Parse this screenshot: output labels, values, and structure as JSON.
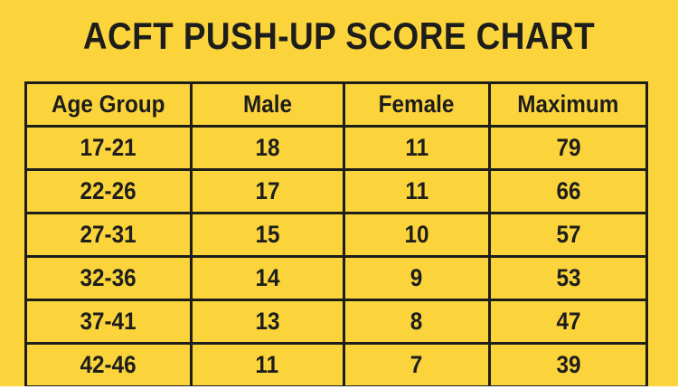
{
  "chart_data": {
    "type": "table",
    "title": "ACFT PUSH-UP SCORE CHART",
    "columns": [
      "Age Group",
      "Male",
      "Female",
      "Maximum"
    ],
    "rows": [
      [
        "17-21",
        "18",
        "11",
        "79"
      ],
      [
        "22-26",
        "17",
        "11",
        "66"
      ],
      [
        "27-31",
        "15",
        "10",
        "57"
      ],
      [
        "32-36",
        "14",
        "9",
        "53"
      ],
      [
        "37-41",
        "13",
        "8",
        "47"
      ],
      [
        "42-46",
        "11",
        "7",
        "39"
      ]
    ]
  },
  "colors": {
    "background": "#FBD43C",
    "text": "#1D1D1B",
    "border": "#1D1D1B",
    "page_margin": "#FFFFFF"
  }
}
